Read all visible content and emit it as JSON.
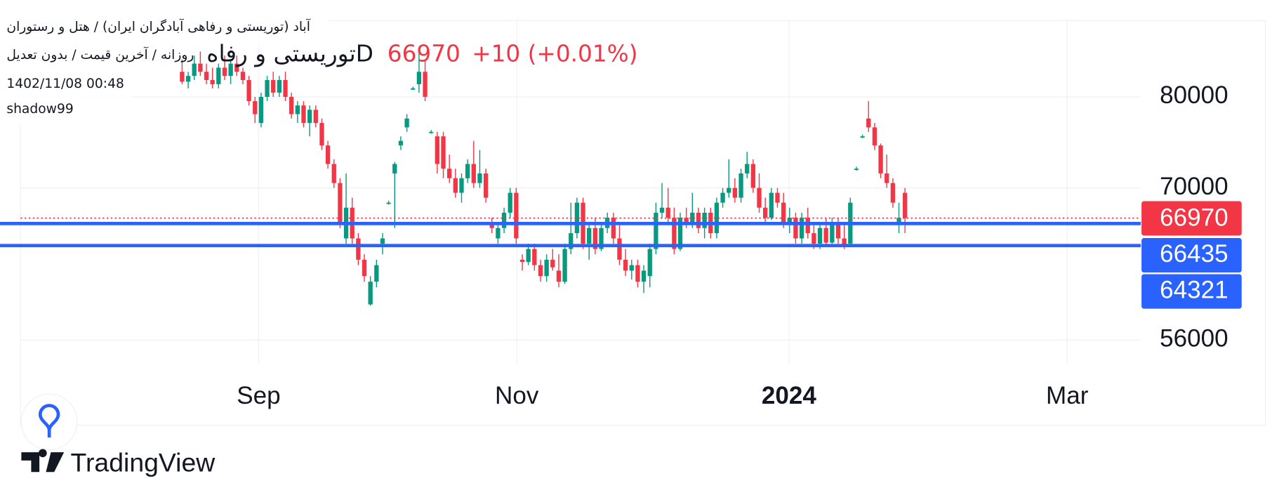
{
  "chart_data": {
    "type": "candlestick",
    "header": {
      "symbol_line": "آباد (توریستی و رفاهی آبادگران ایران) / هتل و رستوران",
      "settings_line": "روزانه / آخرین قیمت / بدون تعدیل",
      "timestamp": "1402/11/08 00:48",
      "author": "shadow99"
    },
    "legend": {
      "symbol": "توریستی و رفاهD",
      "last": 66970,
      "change": "+10 (+0.01%)",
      "color": "#f23645"
    },
    "up_color": "#089981",
    "down_color": "#f23645",
    "open": [
      83000,
      81800,
      82500,
      84000,
      83000,
      82000,
      81500,
      83500,
      82500,
      84000,
      83000,
      82000,
      79500,
      77000,
      80000,
      82000,
      80500,
      82000,
      80000,
      78000,
      79000,
      77000,
      78500,
      77000,
      74500,
      72500,
      70500,
      65000,
      68000,
      65000,
      63000,
      59000,
      61000,
      64500,
      68500,
      71500,
      74500,
      76500,
      81000,
      81500,
      83000,
      76000,
      75500,
      75500,
      72000,
      71000,
      69500,
      71000,
      72500,
      70500,
      71500,
      66500,
      65000,
      66000,
      67500,
      69500,
      63000,
      62800,
      64000,
      62500,
      61500,
      63000,
      62000,
      61000,
      64000,
      65500,
      68500,
      64500,
      66000,
      64000,
      66000,
      67000,
      65000,
      63000,
      62000,
      62500,
      61000,
      61500,
      64000,
      67500,
      68000,
      67000,
      64000,
      67000,
      66500,
      67500,
      66000,
      67500,
      65500,
      68500,
      69500,
      70000,
      69000,
      71500,
      72500,
      70000,
      68000,
      67000,
      69500,
      68500,
      66500,
      67000,
      65000,
      67000,
      65500,
      64500,
      66000,
      64600,
      66500,
      65000,
      64500,
      72000,
      75500,
      77500,
      76500,
      74500,
      71500,
      70500,
      66500,
      69500
    ],
    "high": [
      84500,
      83000,
      85000,
      85500,
      84000,
      83500,
      84000,
      85000,
      84500,
      85000,
      83500,
      82500,
      80000,
      80500,
      82500,
      83000,
      82500,
      83000,
      80500,
      79500,
      79500,
      79000,
      79000,
      77500,
      75000,
      73000,
      71000,
      71500,
      69000,
      65500,
      63500,
      61500,
      63000,
      65500,
      68700,
      72700,
      75500,
      78000,
      81200,
      86000,
      84500,
      76200,
      76000,
      76000,
      73500,
      72000,
      71500,
      73000,
      75000,
      74000,
      72000,
      67000,
      66500,
      68000,
      70000,
      70000,
      63500,
      64500,
      64500,
      63000,
      63500,
      64000,
      63500,
      64500,
      68500,
      69000,
      69000,
      66500,
      67000,
      66500,
      67500,
      67500,
      66500,
      64000,
      63000,
      63000,
      62500,
      64500,
      68500,
      70500,
      70000,
      68000,
      67500,
      68000,
      69500,
      68000,
      68000,
      68000,
      69000,
      70000,
      73000,
      71000,
      72000,
      73800,
      73000,
      71500,
      69000,
      70000,
      70000,
      69500,
      68000,
      67500,
      67500,
      68000,
      66500,
      66500,
      67000,
      67000,
      67000,
      66500,
      69000,
      72200,
      75700,
      79500,
      77000,
      74700,
      73500,
      71000,
      68500,
      70000
    ],
    "low": [
      81500,
      81000,
      82000,
      82500,
      81500,
      81000,
      81000,
      82000,
      81500,
      82500,
      81500,
      79000,
      77000,
      76500,
      79500,
      80000,
      80000,
      79500,
      77500,
      77000,
      76500,
      75500,
      76500,
      74000,
      72000,
      70000,
      66000,
      64500,
      64500,
      62500,
      61000,
      58900,
      60500,
      63500,
      68300,
      66000,
      74000,
      76000,
      80800,
      80500,
      79500,
      75800,
      71500,
      71000,
      70500,
      69000,
      68500,
      70500,
      70000,
      70000,
      68500,
      65500,
      64500,
      65500,
      67000,
      64500,
      62000,
      62500,
      62000,
      61000,
      61000,
      62000,
      60500,
      60800,
      63500,
      65000,
      64000,
      63000,
      63500,
      63800,
      65500,
      64500,
      62500,
      61500,
      61200,
      60500,
      60000,
      60500,
      63500,
      67000,
      66500,
      63500,
      63800,
      66000,
      66000,
      65500,
      65000,
      65000,
      65000,
      68000,
      69000,
      68500,
      68500,
      71000,
      69500,
      67500,
      66500,
      66800,
      68000,
      66000,
      65500,
      64500,
      64500,
      65000,
      64000,
      64000,
      64300,
      64500,
      64500,
      64000,
      64300,
      71800,
      75300,
      76000,
      74000,
      71000,
      70000,
      68000,
      65500,
      65500
    ],
    "close": [
      81800,
      82500,
      84000,
      83000,
      82000,
      81500,
      83500,
      82500,
      84000,
      83000,
      82000,
      79500,
      78000,
      80000,
      82000,
      80500,
      82000,
      80000,
      78000,
      79000,
      77000,
      78500,
      77000,
      74500,
      72500,
      70500,
      66500,
      68000,
      65000,
      63000,
      61500,
      61000,
      62500,
      65000,
      68500,
      72500,
      75000,
      77500,
      81000,
      83000,
      80000,
      76000,
      72500,
      72000,
      71000,
      69500,
      71000,
      72500,
      70500,
      71500,
      69000,
      66000,
      66000,
      67500,
      69500,
      65000,
      62800,
      64000,
      62500,
      61500,
      63000,
      62300,
      61000,
      64000,
      65500,
      68500,
      64500,
      66000,
      64000,
      66000,
      67000,
      65000,
      63000,
      62000,
      62500,
      61000,
      62000,
      64000,
      67500,
      68000,
      67000,
      64000,
      67000,
      66500,
      67500,
      66000,
      67500,
      65500,
      68500,
      69500,
      70000,
      69000,
      71500,
      72500,
      70000,
      68000,
      67000,
      69500,
      68500,
      66500,
      67000,
      65000,
      67000,
      65500,
      64500,
      66000,
      64600,
      66500,
      65000,
      64300,
      68500,
      72000,
      75500,
      76500,
      74500,
      71500,
      70500,
      68500,
      67000,
      66970
    ],
    "last_price": 66970,
    "last_price_color": "#f23645",
    "price_lines": [
      {
        "value": 66435,
        "color": "#2962ff"
      },
      {
        "value": 64321,
        "color": "#2962ff"
      }
    ],
    "log_scale": true,
    "grid": true,
    "ylim": [
      53960,
      89480
    ],
    "yticks": [
      56000,
      70000,
      80000
    ],
    "xlim": [
      -26.6,
      157.8
    ],
    "xticks": [
      {
        "value": 12.6,
        "label": "Sep"
      },
      {
        "value": 55.1,
        "label": "Nov"
      },
      {
        "value": 99.9,
        "label": "2024"
      },
      {
        "value": 145.7,
        "label": "Mar"
      }
    ],
    "branding": "TradingView"
  }
}
